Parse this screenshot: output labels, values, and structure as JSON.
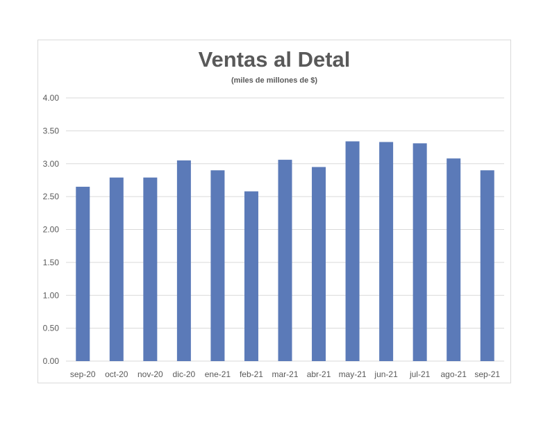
{
  "chart_data": {
    "type": "bar",
    "title": "Ventas al Detal",
    "subtitle": "(miles de millones de $)",
    "xlabel": "",
    "ylabel": "",
    "categories": [
      "sep-20",
      "oct-20",
      "nov-20",
      "dic-20",
      "ene-21",
      "feb-21",
      "mar-21",
      "abr-21",
      "may-21",
      "jun-21",
      "jul-21",
      "ago-21",
      "sep-21"
    ],
    "values": [
      2.65,
      2.79,
      2.79,
      3.05,
      2.9,
      2.58,
      3.06,
      2.95,
      3.34,
      3.33,
      3.31,
      3.08,
      2.9
    ],
    "ylim": [
      0,
      4
    ],
    "yticks": [
      "0.00",
      "0.50",
      "1.00",
      "1.50",
      "2.00",
      "2.50",
      "3.00",
      "3.50",
      "4.00"
    ],
    "grid": true,
    "legend": "none",
    "colors": {
      "bar": "#5b7ab8",
      "grid": "#d9d9d9",
      "text": "#595959"
    }
  }
}
